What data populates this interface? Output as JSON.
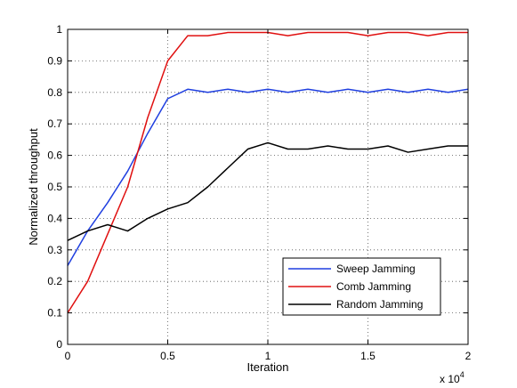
{
  "chart_data": {
    "type": "line",
    "xlabel": "Iteration",
    "ylabel": "Normalized throughput",
    "x_multiplier_label": "x 10",
    "x_multiplier_exponent": "4",
    "xlim": [
      0,
      2
    ],
    "ylim": [
      0,
      1
    ],
    "x_ticks": [
      "0",
      "0.5",
      "1",
      "1.5",
      "2"
    ],
    "y_ticks": [
      "0",
      "0.1",
      "0.2",
      "0.3",
      "0.4",
      "0.5",
      "0.6",
      "0.7",
      "0.8",
      "0.9",
      "1"
    ],
    "grid": true,
    "legend_position": "bottom-right",
    "x": [
      0,
      0.1,
      0.2,
      0.3,
      0.4,
      0.5,
      0.6,
      0.7,
      0.8,
      0.9,
      1.0,
      1.1,
      1.2,
      1.3,
      1.4,
      1.5,
      1.6,
      1.7,
      1.8,
      1.9,
      2.0
    ],
    "series": [
      {
        "name": "Sweep Jamming",
        "color": "#1f3fe0",
        "values": [
          0.25,
          0.36,
          0.45,
          0.55,
          0.67,
          0.78,
          0.81,
          0.8,
          0.81,
          0.8,
          0.81,
          0.8,
          0.81,
          0.8,
          0.81,
          0.8,
          0.81,
          0.8,
          0.81,
          0.8,
          0.81
        ]
      },
      {
        "name": "Comb Jamming",
        "color": "#e01010",
        "values": [
          0.1,
          0.2,
          0.35,
          0.5,
          0.72,
          0.9,
          0.98,
          0.98,
          0.99,
          0.99,
          0.99,
          0.98,
          0.99,
          0.99,
          0.99,
          0.98,
          0.99,
          0.99,
          0.98,
          0.99,
          0.99
        ]
      },
      {
        "name": "Random Jamming",
        "color": "#000000",
        "values": [
          0.33,
          0.36,
          0.38,
          0.36,
          0.4,
          0.43,
          0.45,
          0.5,
          0.56,
          0.62,
          0.64,
          0.62,
          0.62,
          0.63,
          0.62,
          0.62,
          0.63,
          0.61,
          0.62,
          0.63,
          0.63
        ]
      }
    ]
  }
}
